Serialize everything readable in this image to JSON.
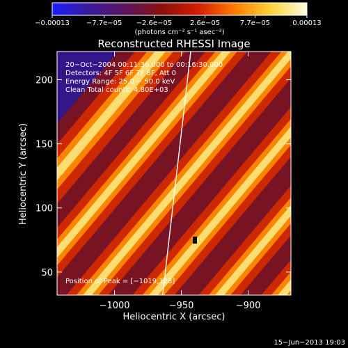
{
  "colorbar": {
    "tick_labels": [
      "−0.00013",
      "−7.7e−05",
      "−2.6e−05",
      "2.6e−05",
      "7.7e−05",
      "0.00013"
    ],
    "tick_values": [
      -0.00013,
      -7.7e-05,
      -2.6e-05,
      2.6e-05,
      7.7e-05,
      0.00013
    ],
    "units": "(photons cm⁻² s⁻¹ asec⁻²)",
    "range": [
      -0.00013,
      0.00013
    ],
    "colors": [
      "#1c1cff",
      "#3a1a9a",
      "#5a1460",
      "#8a1010",
      "#d21c00",
      "#ff7a00",
      "#ffd23a",
      "#fffbe0"
    ]
  },
  "annotations": {
    "time": "20−Oct−2004 00:11:36.000 to 00:16:30.000",
    "detectors": "Detectors: 4F 5F 6F 7F 8F, Att 0",
    "energy": "Energy Range: 25.0 − 50.0 keV",
    "clean": "Clean    Total counts: 4.80E+03",
    "peak": "Position of Peak = [−1019,128]"
  },
  "footer_date": "15−Jun−2013 19:03",
  "chart_data": {
    "type": "heatmap",
    "title": "Reconstructed RHESSI Image",
    "xlabel": "Heliocentric X (arcsec)",
    "ylabel": "Heliocentric Y (arcsec)",
    "xlim": [
      -1043,
      -868
    ],
    "ylim": [
      32,
      222
    ],
    "x_ticks": [
      -1000,
      -950,
      -900
    ],
    "x_tick_labels": [
      "−1000",
      "−950",
      "−900"
    ],
    "y_ticks": [
      50,
      100,
      150,
      200
    ],
    "y_tick_labels": [
      "50",
      "100",
      "150",
      "200"
    ],
    "limb_line": [
      [
        -964,
        32
      ],
      [
        -943,
        222
      ]
    ],
    "peak_position": [
      -1019,
      128
    ]
  }
}
